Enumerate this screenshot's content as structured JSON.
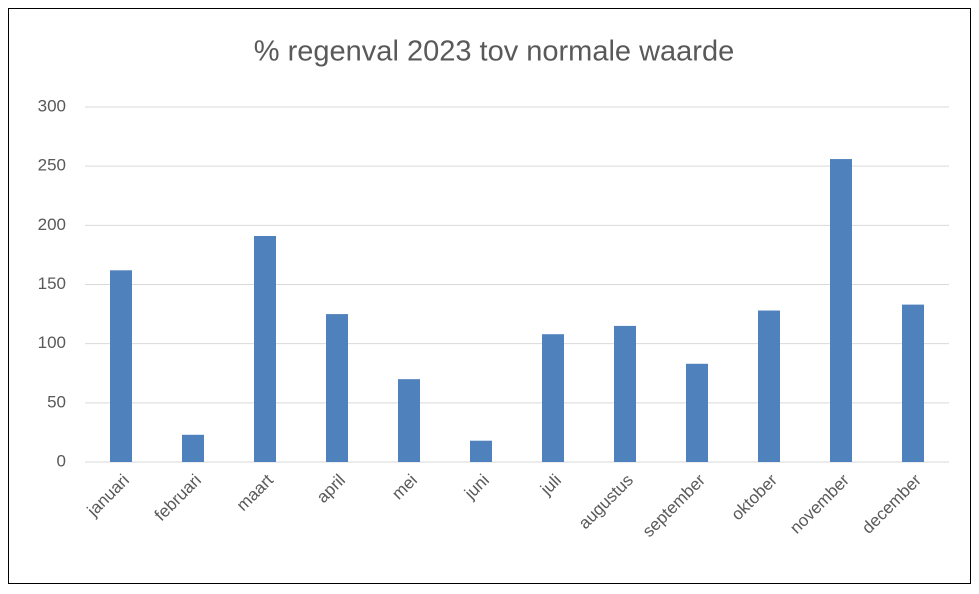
{
  "chart_data": {
    "type": "bar",
    "title": "% regenval 2023 tov normale waarde",
    "categories": [
      "januari",
      "februari",
      "maart",
      "april",
      "mei",
      "juni",
      "juli",
      "augustus",
      "september",
      "oktober",
      "november",
      "december"
    ],
    "values": [
      162,
      23,
      191,
      125,
      70,
      18,
      108,
      115,
      83,
      128,
      256,
      133
    ],
    "color": "#4f81bd",
    "ylim": [
      0,
      300
    ],
    "yticks": [
      0,
      50,
      100,
      150,
      200,
      250,
      300
    ],
    "grid": true
  }
}
